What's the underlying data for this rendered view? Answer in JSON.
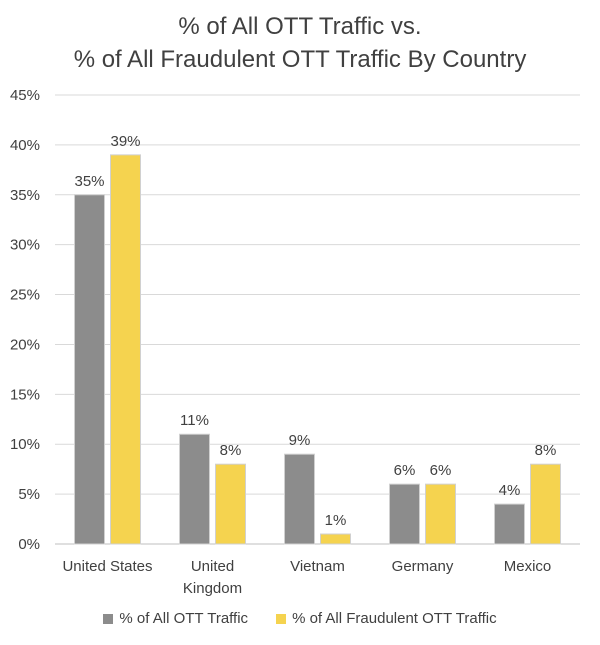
{
  "chart_data": {
    "type": "bar",
    "title_lines": [
      "% of All OTT Traffic vs.",
      "% of All Fraudulent OTT Traffic By Country"
    ],
    "categories": [
      [
        "United States"
      ],
      [
        "United",
        "Kingdom"
      ],
      [
        "Vietnam"
      ],
      [
        "Germany"
      ],
      [
        "Mexico"
      ]
    ],
    "series": [
      {
        "name": "% of All OTT Traffic",
        "color": "#8c8c8c",
        "values": [
          35,
          11,
          9,
          6,
          4
        ]
      },
      {
        "name": "% of All Fraudulent OTT Traffic",
        "color": "#f5d34f",
        "values": [
          39,
          8,
          1,
          6,
          8
        ]
      }
    ],
    "ylim": [
      0,
      45
    ],
    "yticks": [
      "0%",
      "5%",
      "10%",
      "15%",
      "20%",
      "25%",
      "30%",
      "35%",
      "40%",
      "45%"
    ],
    "value_labels": [
      [
        "35%",
        "11%",
        "9%",
        "6%",
        "4%"
      ],
      [
        "39%",
        "8%",
        "1%",
        "6%",
        "8%"
      ]
    ],
    "grid": true,
    "legend_position": "bottom"
  }
}
